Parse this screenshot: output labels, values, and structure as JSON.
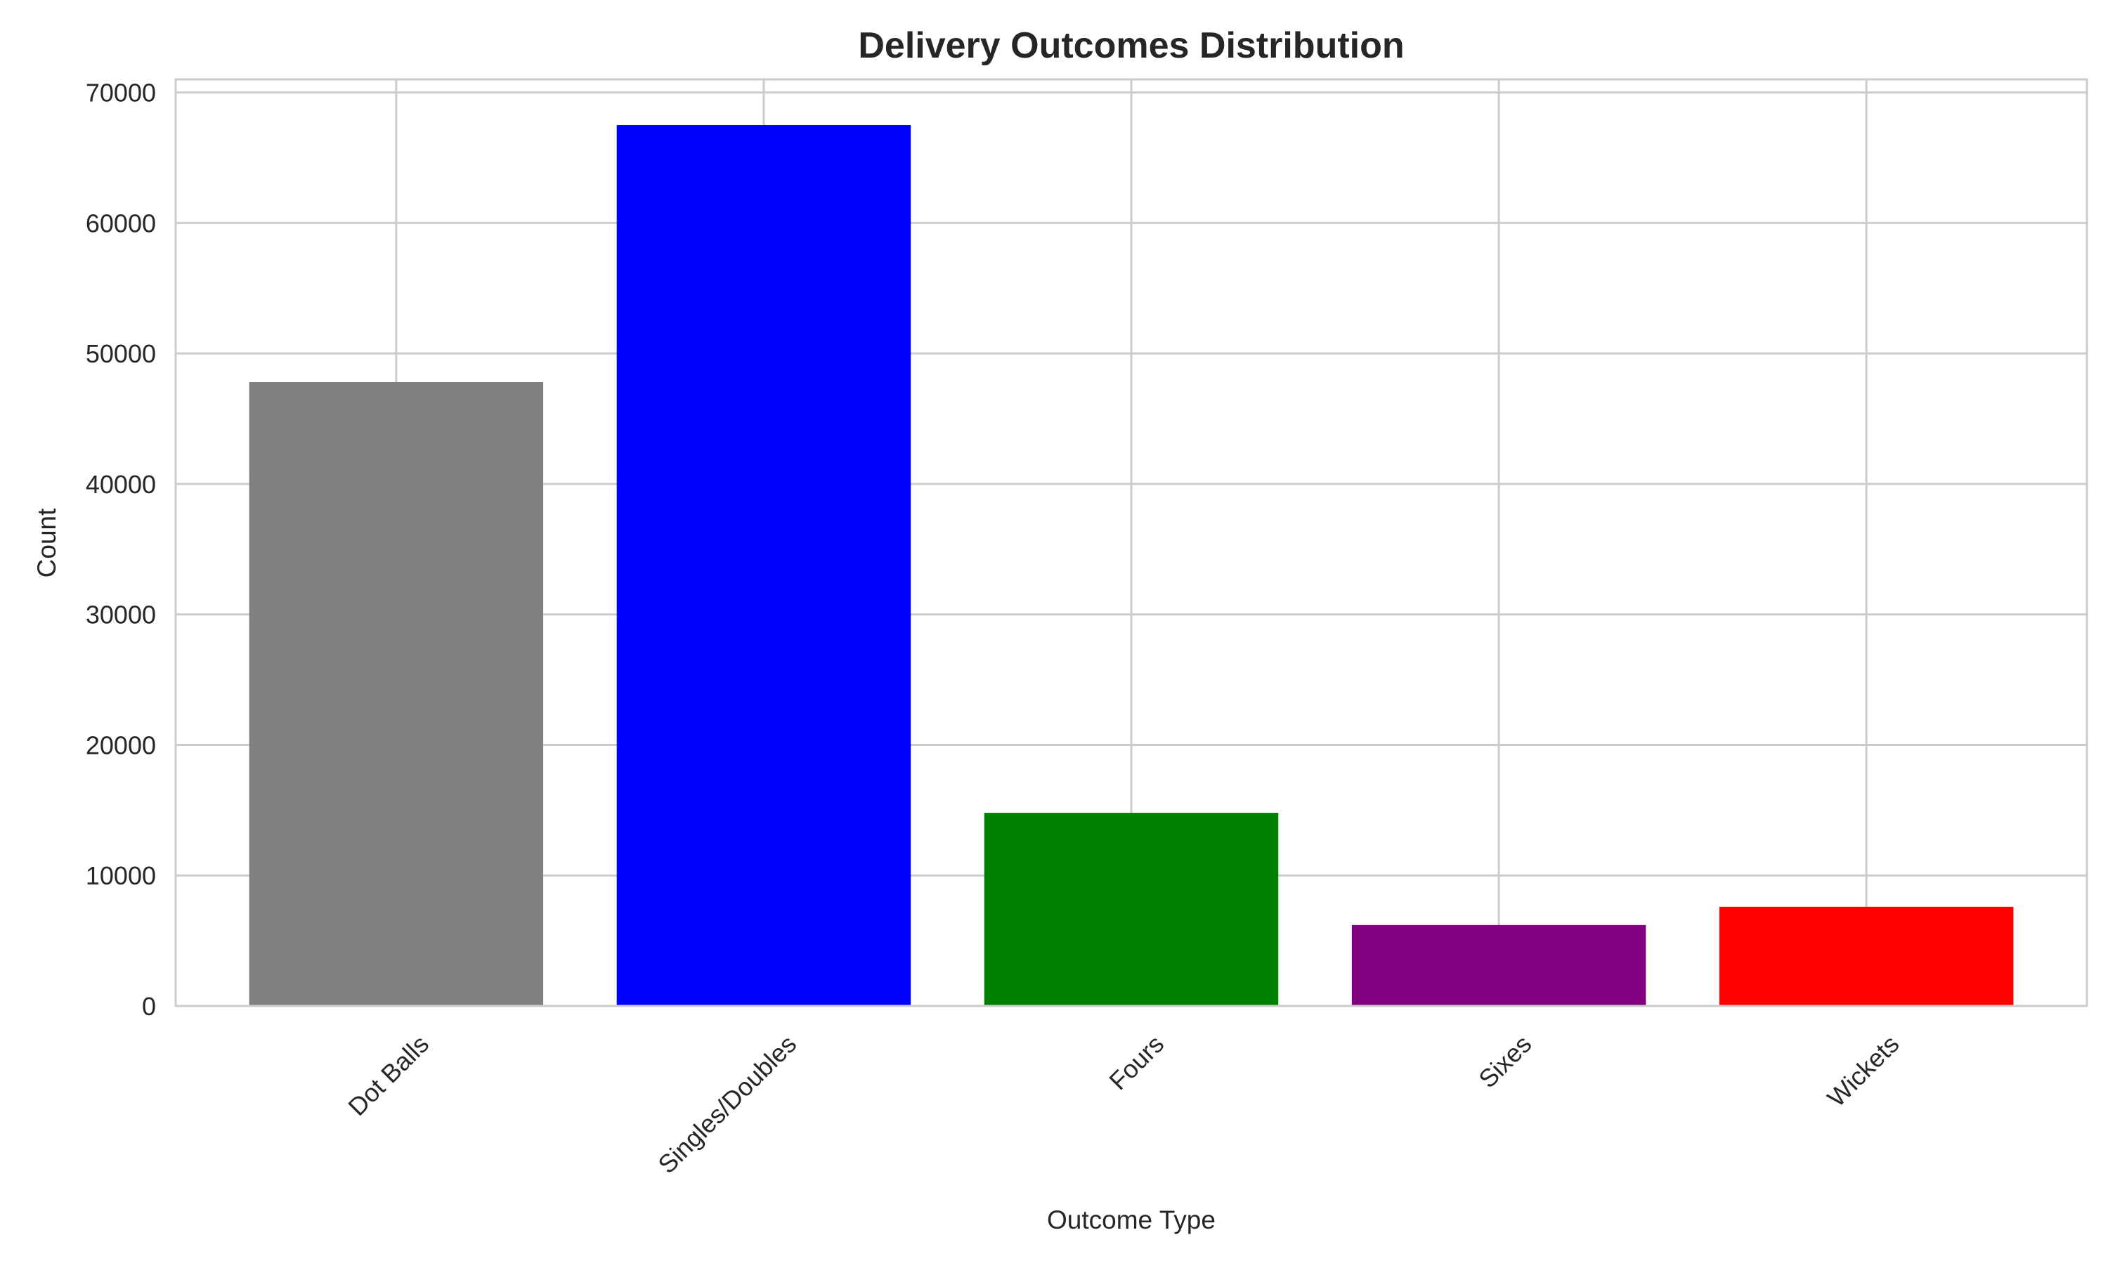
{
  "chart_data": {
    "type": "bar",
    "title": "Delivery Outcomes Distribution",
    "xlabel": "Outcome Type",
    "ylabel": "Count",
    "categories": [
      "Dot Balls",
      "Singles/Doubles",
      "Fours",
      "Sixes",
      "Wickets"
    ],
    "values": [
      47800,
      67500,
      14800,
      6200,
      7600
    ],
    "colors": [
      "#808080",
      "#0000ff",
      "#008000",
      "#800080",
      "#ff0000"
    ],
    "ylim": [
      0,
      71000
    ],
    "yticks": [
      0,
      10000,
      20000,
      30000,
      40000,
      50000,
      60000,
      70000
    ],
    "ytick_labels": [
      "0",
      "10000",
      "20000",
      "30000",
      "40000",
      "50000",
      "60000",
      "70000"
    ],
    "grid": true,
    "xtick_rotation_deg": 45
  }
}
